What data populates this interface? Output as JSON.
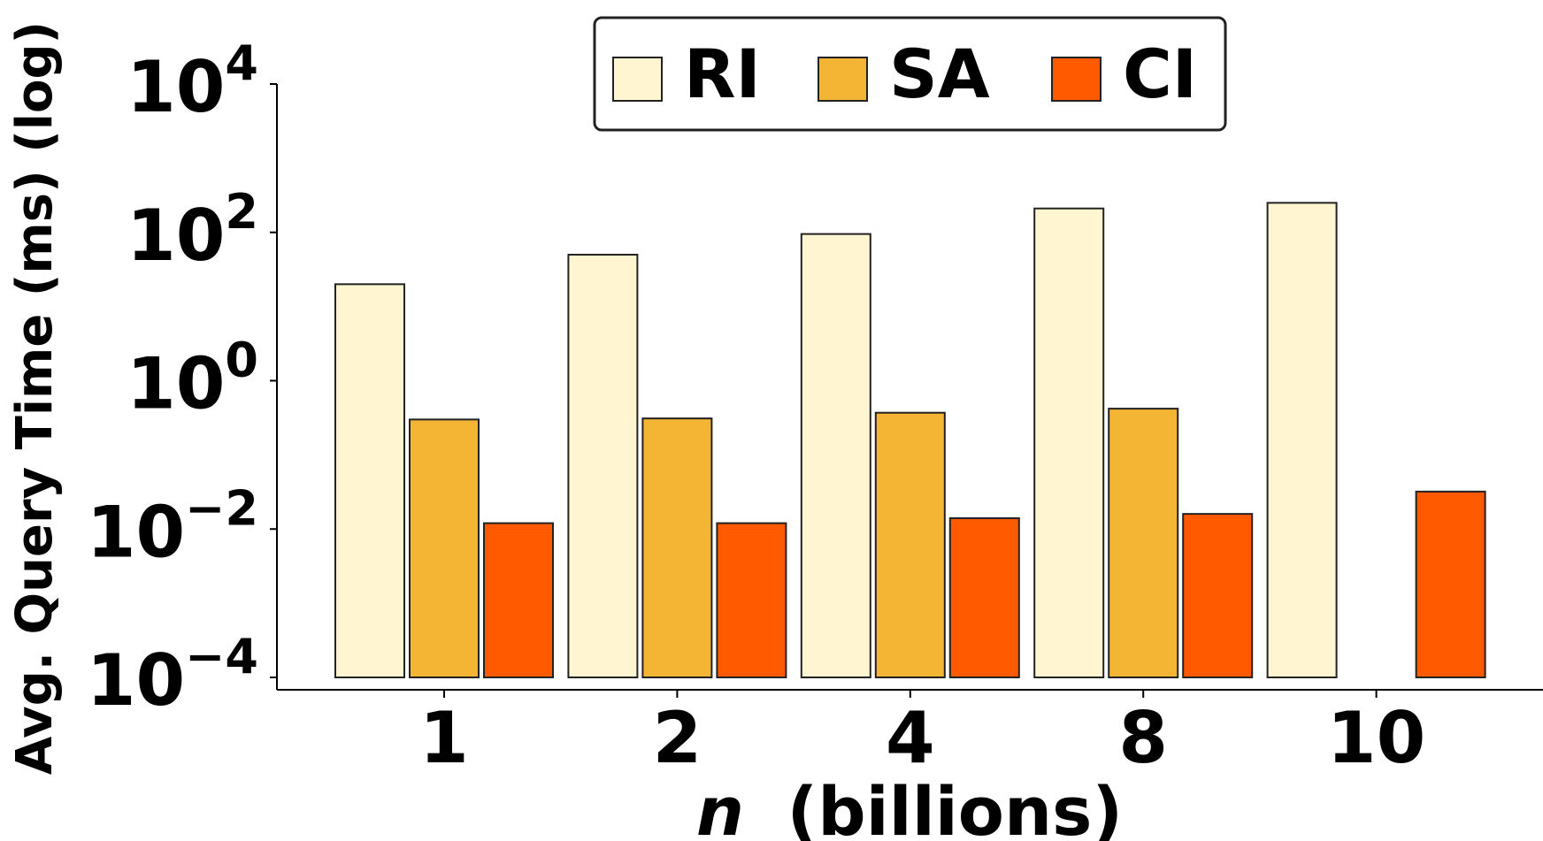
{
  "chart_data": {
    "type": "bar",
    "scale": "log",
    "categories": [
      "1",
      "2",
      "4",
      "8",
      "10"
    ],
    "series": [
      {
        "name": "RI",
        "color": "#FFF5D0",
        "values": [
          20,
          50,
          95,
          210,
          250
        ]
      },
      {
        "name": "SA",
        "color": "#F4B434",
        "values": [
          0.3,
          0.31,
          0.37,
          0.42,
          null
        ]
      },
      {
        "name": "CI",
        "color": "#FF5A00",
        "values": [
          0.012,
          0.012,
          0.014,
          0.016,
          0.032
        ]
      }
    ],
    "xlabel_italic": "n",
    "xlabel_rest": "(billions)",
    "ylabel": "Avg. Query Time (ms) (log)",
    "y_ticks": [
      {
        "base": "10",
        "exp": "4",
        "value": 10000
      },
      {
        "base": "10",
        "exp": "2",
        "value": 100
      },
      {
        "base": "10",
        "exp": "0",
        "value": 1
      },
      {
        "base": "10",
        "exp": "−2",
        "value": 0.01
      },
      {
        "base": "10",
        "exp": "−4",
        "value": 0.0001
      }
    ],
    "ylim": [
      0.0001,
      10000
    ],
    "legend_position": "top-center",
    "grid": false
  }
}
